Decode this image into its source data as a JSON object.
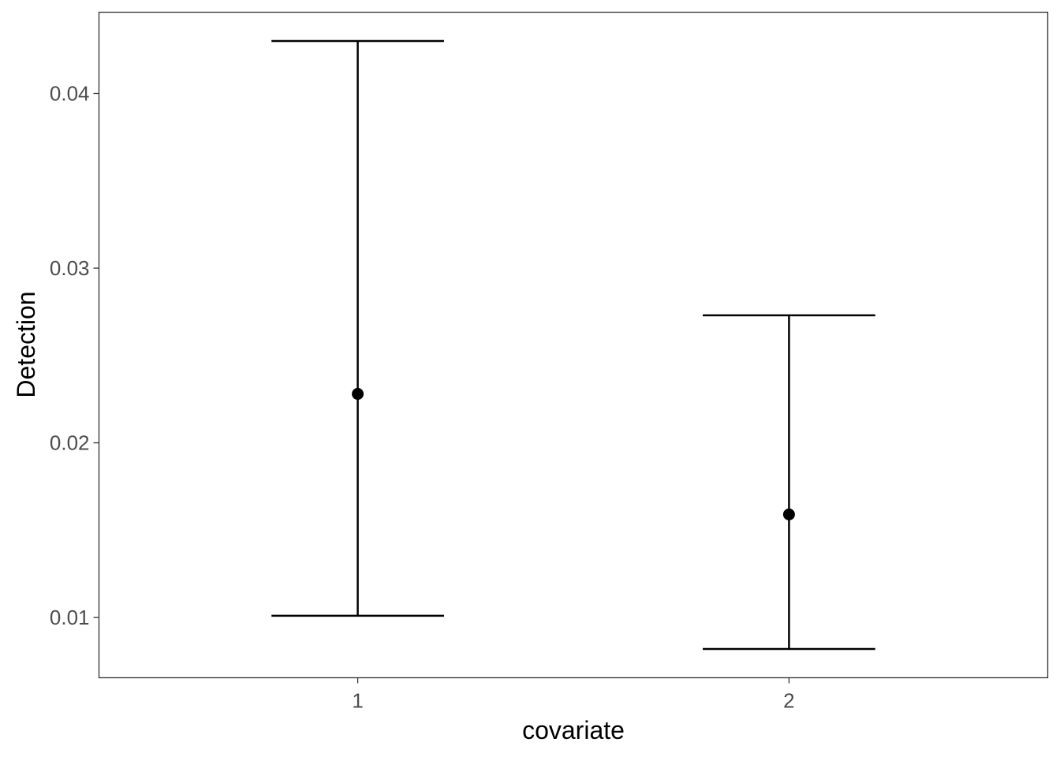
{
  "chart_data": {
    "type": "errorbar",
    "title": "",
    "xlabel": "covariate",
    "ylabel": "Detection",
    "categories": [
      "1",
      "2"
    ],
    "points": [
      {
        "x": "1",
        "y": 0.0228,
        "lower": 0.0101,
        "upper": 0.043
      },
      {
        "x": "2",
        "y": 0.0159,
        "lower": 0.0082,
        "upper": 0.0273
      }
    ],
    "ylim": [
      0.00655,
      0.04465
    ],
    "yticks": [
      0.01,
      0.02,
      0.03,
      0.04
    ],
    "ytick_labels": [
      "0.01",
      "0.02",
      "0.03",
      "0.04"
    ],
    "grid": false,
    "colors": {
      "marks": "#000000",
      "panel_border": "#333333",
      "tick_text": "#4d4d4d"
    }
  }
}
